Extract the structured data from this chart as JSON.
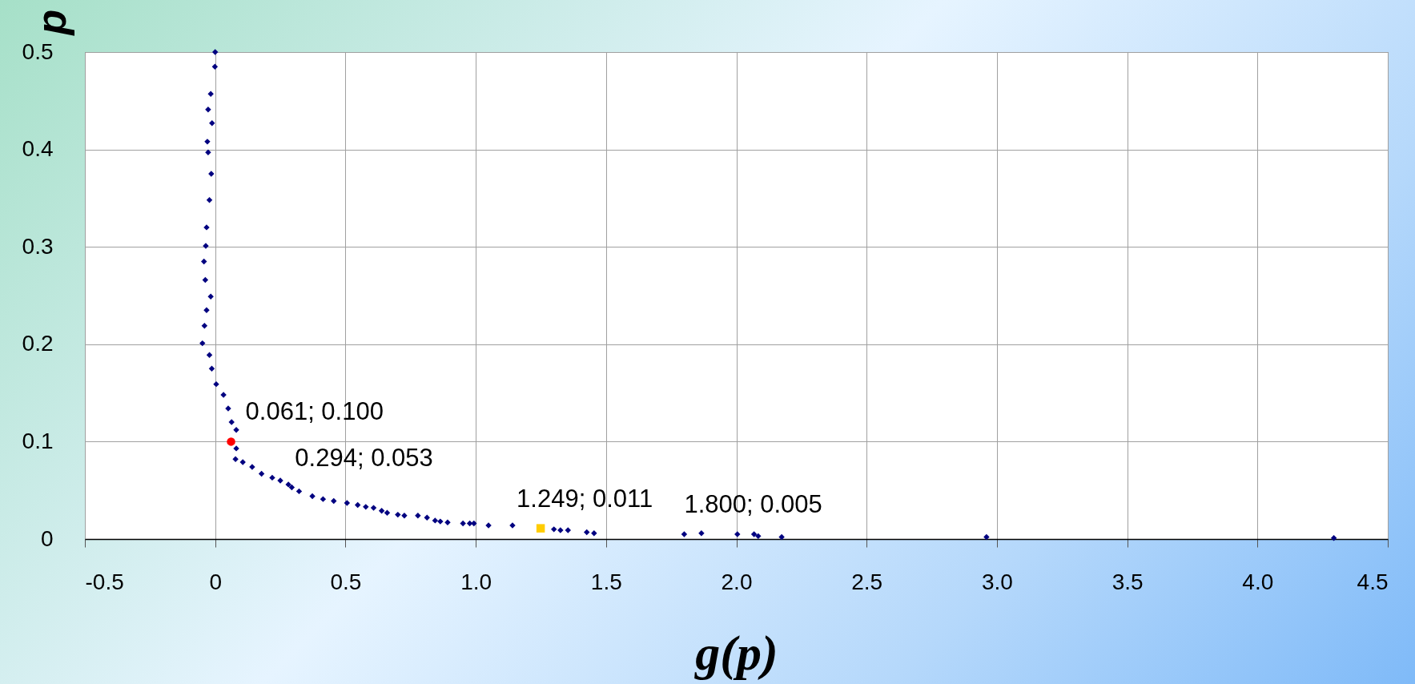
{
  "chart_data": {
    "type": "scatter",
    "xlabel": "g(p)",
    "ylabel": "p",
    "xlim": [
      -0.5,
      4.5
    ],
    "ylim": [
      0,
      0.5
    ],
    "xticks": [
      -0.5,
      0,
      0.5,
      {
        "value": 1,
        "label": "1.0"
      },
      1.5,
      {
        "value": 2,
        "label": "2.0"
      },
      2.5,
      {
        "value": 3,
        "label": "3.0"
      },
      3.5,
      {
        "value": 4,
        "label": "4.0"
      },
      4.5
    ],
    "yticks": [
      0,
      0.1,
      0.2,
      0.3,
      0.4,
      0.5
    ],
    "grid": true,
    "series": [
      {
        "color": "#000080",
        "marker": "diamond",
        "x": [
          0.0,
          -0.001,
          -0.017,
          -0.027,
          -0.012,
          -0.03,
          -0.027,
          -0.015,
          -0.022,
          -0.033,
          -0.036,
          -0.043,
          -0.038,
          -0.017,
          -0.033,
          -0.041,
          -0.049,
          -0.022,
          -0.013,
          0.004,
          0.032,
          0.05,
          0.063,
          0.081,
          0.081,
          0.078,
          0.106,
          0.142,
          0.178,
          0.219,
          0.25,
          0.281,
          0.294,
          0.322,
          0.373,
          0.414,
          0.455,
          0.506,
          0.547,
          0.578,
          0.608,
          0.639,
          0.66,
          0.701,
          0.726,
          0.778,
          0.813,
          0.844,
          0.864,
          0.892,
          0.951,
          0.977,
          0.993,
          1.049,
          1.141,
          1.3,
          1.325,
          1.354,
          1.426,
          1.454,
          1.8,
          1.866,
          2.004,
          2.068,
          2.084,
          2.174,
          2.96,
          4.293
        ],
        "values": [
          0.5,
          0.485,
          0.457,
          0.441,
          0.427,
          0.408,
          0.397,
          0.375,
          0.348,
          0.32,
          0.301,
          0.285,
          0.266,
          0.249,
          0.235,
          0.219,
          0.201,
          0.189,
          0.175,
          0.159,
          0.148,
          0.134,
          0.12,
          0.112,
          0.093,
          0.082,
          0.079,
          0.074,
          0.067,
          0.063,
          0.06,
          0.056,
          0.053,
          0.049,
          0.044,
          0.041,
          0.039,
          0.037,
          0.035,
          0.033,
          0.032,
          0.029,
          0.027,
          0.025,
          0.024,
          0.024,
          0.022,
          0.019,
          0.018,
          0.017,
          0.016,
          0.016,
          0.016,
          0.014,
          0.014,
          0.01,
          0.009,
          0.009,
          0.007,
          0.006,
          0.005,
          0.006,
          0.005,
          0.005,
          0.003,
          0.002,
          0.002,
          0.001
        ]
      },
      {
        "color": "#ff0000",
        "marker": "circle",
        "x": [
          0.061
        ],
        "values": [
          0.1
        ]
      },
      {
        "color": "#ffcc00",
        "marker": "square",
        "x": [
          1.249
        ],
        "values": [
          0.011
        ]
      }
    ],
    "annotations": [
      {
        "text": "0.061; 0.100",
        "x": 0.061,
        "y": 0.1
      },
      {
        "text": "0.294; 0.053",
        "x": 0.294,
        "y": 0.053
      },
      {
        "text": "1.249; 0.011",
        "x": 1.249,
        "y": 0.011
      },
      {
        "text": "1.800; 0.005",
        "x": 1.8,
        "y": 0.005
      }
    ]
  }
}
